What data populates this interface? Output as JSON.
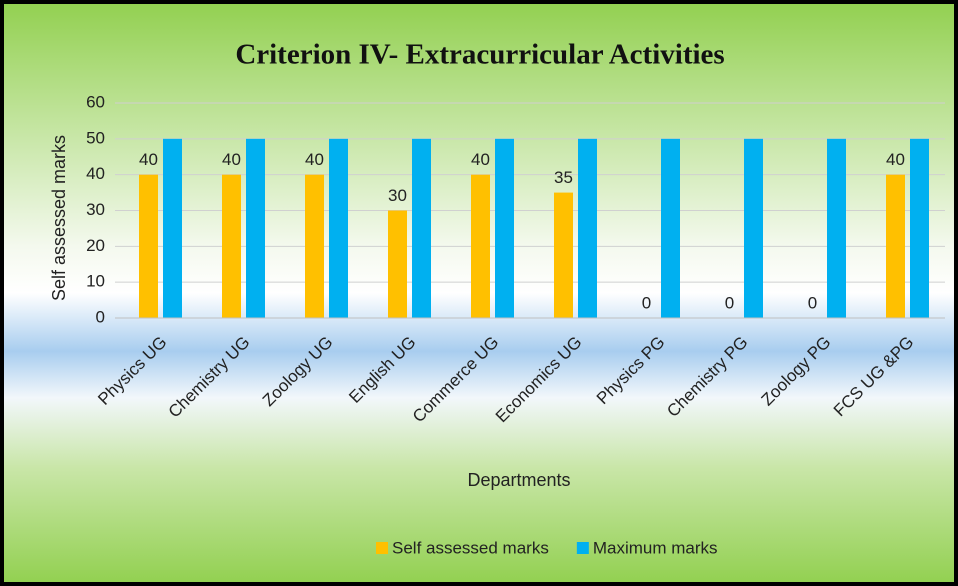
{
  "chart_data": {
    "type": "bar",
    "title": "Criterion IV- Extracurricular Activities",
    "x_label": "Departments",
    "y_label": "Self assessed marks",
    "categories": [
      "Physics  UG",
      "Chemistry UG",
      "Zoology UG",
      "English UG",
      "Commerce UG",
      "Economics UG",
      "Physics  PG",
      "Chemistry PG",
      "Zoology PG",
      "FCS UG &PG"
    ],
    "series": [
      {
        "name": "Self assessed marks",
        "color": "#FFC000",
        "values": [
          40,
          40,
          40,
          30,
          40,
          35,
          0,
          0,
          0,
          40
        ],
        "data_labels": true
      },
      {
        "name": "Maximum marks",
        "color": "#00B0F0",
        "values": [
          50,
          50,
          50,
          50,
          50,
          50,
          50,
          50,
          50,
          50
        ],
        "data_labels": false
      }
    ],
    "ylim": [
      0,
      60
    ],
    "yticks": [
      0,
      10,
      20,
      30,
      40,
      50,
      60
    ],
    "grid": true,
    "legend": "bottom"
  }
}
